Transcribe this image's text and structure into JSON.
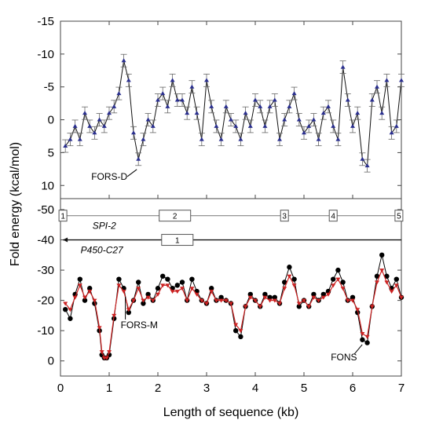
{
  "chart_data": [
    {
      "type": "line",
      "panel": "top",
      "xlabel": "Length of sequence (kb)",
      "ylabel": "Fold energy (kcal/mol)",
      "xlim": [
        0,
        7
      ],
      "ylim": [
        -15,
        12
      ],
      "y_axis_inverted": true,
      "x_ticks": [
        0,
        1,
        2,
        3,
        4,
        5,
        6,
        7
      ],
      "y_ticks": [
        -15,
        -10,
        -5,
        0,
        5,
        10
      ],
      "y_tick_labels": [
        "-15",
        "-10",
        "-5",
        "0",
        "5",
        "10"
      ],
      "x_tick_labels": [
        "0",
        "1",
        "2",
        "3",
        "4",
        "5",
        "6",
        "7"
      ],
      "error_bars": true,
      "marker": "triangle",
      "colors": {
        "line": "#111111",
        "marker": "#2a2f8f",
        "errorbar": "#666666"
      },
      "series": [
        {
          "x": [
            0.1,
            0.2,
            0.3,
            0.4,
            0.5,
            0.6,
            0.7,
            0.8,
            0.9,
            1.0,
            1.1,
            1.2,
            1.3,
            1.4,
            1.5,
            1.6,
            1.7,
            1.8,
            1.9,
            2.0,
            2.1,
            2.2,
            2.3,
            2.4,
            2.5,
            2.6,
            2.7,
            2.8,
            2.9,
            3.0,
            3.1,
            3.2,
            3.3,
            3.4,
            3.5,
            3.6,
            3.7,
            3.8,
            3.9,
            4.0,
            4.1,
            4.2,
            4.3,
            4.4,
            4.5,
            4.6,
            4.7,
            4.8,
            4.9,
            5.0,
            5.1,
            5.2,
            5.3,
            5.4,
            5.5,
            5.6,
            5.7,
            5.8,
            5.9,
            6.0,
            6.1,
            6.2,
            6.3,
            6.4,
            6.5,
            6.6,
            6.7,
            6.8,
            6.9,
            7.0
          ],
          "y": [
            4,
            3,
            1,
            3,
            -1,
            1,
            2,
            0,
            1,
            -1,
            -2,
            -4,
            -9,
            -6,
            2,
            6,
            3,
            0,
            1,
            -3,
            -4,
            -2,
            -6,
            -3,
            -3,
            -1,
            -5,
            -1,
            3,
            -6,
            -2,
            1,
            3,
            -2,
            0,
            1,
            3,
            -1,
            1,
            -3,
            -2,
            1,
            -2,
            -3,
            3,
            0,
            -2,
            -4,
            0,
            2,
            1,
            0,
            3,
            -1,
            -2,
            1,
            3,
            -8,
            -3,
            1,
            -1,
            6,
            7,
            -3,
            -5,
            -1,
            -6,
            2,
            1,
            -6
          ]
        }
      ],
      "annotations": [
        {
          "text": "FORS-D",
          "x": 1.6,
          "y": 7.2
        }
      ]
    },
    {
      "type": "line",
      "panel": "bottom",
      "xlabel": "Length of sequence (kb)",
      "ylabel": "Fold energy (kcal/mol)",
      "xlim": [
        0,
        7
      ],
      "ylim": [
        5,
        -50
      ],
      "y_axis_inverted": true,
      "x_ticks": [
        0,
        1,
        2,
        3,
        4,
        5,
        6,
        7
      ],
      "x_tick_labels": [
        "0",
        "1",
        "2",
        "3",
        "4",
        "5",
        "6",
        "7"
      ],
      "y_ticks": [
        0,
        -10,
        -20,
        -30,
        -40,
        -50
      ],
      "y_tick_labels": [
        "0",
        "-10",
        "-20",
        "-30",
        "-40",
        "-50"
      ],
      "colors": {
        "series_black": "#000000",
        "series_red": "#cc2222"
      },
      "series": [
        {
          "marker": "circle",
          "color": "#000000",
          "x": [
            0.1,
            0.2,
            0.3,
            0.4,
            0.5,
            0.6,
            0.7,
            0.8,
            0.85,
            0.9,
            0.95,
            1.0,
            1.1,
            1.2,
            1.3,
            1.4,
            1.5,
            1.6,
            1.7,
            1.8,
            1.9,
            2.0,
            2.1,
            2.2,
            2.3,
            2.4,
            2.5,
            2.6,
            2.7,
            2.8,
            2.9,
            3.0,
            3.1,
            3.2,
            3.3,
            3.4,
            3.5,
            3.6,
            3.7,
            3.8,
            3.9,
            4.0,
            4.1,
            4.2,
            4.3,
            4.4,
            4.5,
            4.6,
            4.7,
            4.8,
            4.9,
            5.0,
            5.1,
            5.2,
            5.3,
            5.4,
            5.5,
            5.6,
            5.7,
            5.8,
            5.9,
            6.0,
            6.1,
            6.2,
            6.3,
            6.4,
            6.5,
            6.6,
            6.7,
            6.8,
            6.9,
            7.0
          ],
          "y": [
            -17,
            -14,
            -22,
            -27,
            -20,
            -24,
            -19,
            -10,
            -2,
            -1,
            -1,
            -2,
            -14,
            -27,
            -24,
            -16,
            -20,
            -26,
            -19,
            -22,
            -20,
            -24,
            -28,
            -27,
            -24,
            -25,
            -26,
            -20,
            -27,
            -23,
            -20,
            -19,
            -24,
            -20,
            -21,
            -20,
            -19,
            -10,
            -8,
            -18,
            -22,
            -20,
            -18,
            -22,
            -21,
            -21,
            -19,
            -26,
            -31,
            -27,
            -18,
            -20,
            -18,
            -22,
            -20,
            -22,
            -23,
            -27,
            -30,
            -26,
            -20,
            -21,
            -16,
            -7,
            -6,
            -18,
            -28,
            -35,
            -28,
            -24,
            -27,
            -21
          ]
        },
        {
          "marker": "triangle-down",
          "color": "#cc2222",
          "x": [
            0.1,
            0.2,
            0.3,
            0.4,
            0.5,
            0.6,
            0.7,
            0.8,
            0.85,
            0.9,
            0.95,
            1.0,
            1.1,
            1.2,
            1.3,
            1.4,
            1.5,
            1.6,
            1.7,
            1.8,
            1.9,
            2.0,
            2.1,
            2.2,
            2.3,
            2.4,
            2.5,
            2.6,
            2.7,
            2.8,
            2.9,
            3.0,
            3.1,
            3.2,
            3.3,
            3.4,
            3.5,
            3.6,
            3.7,
            3.8,
            3.9,
            4.0,
            4.1,
            4.2,
            4.3,
            4.4,
            4.5,
            4.6,
            4.7,
            4.8,
            4.9,
            5.0,
            5.1,
            5.2,
            5.3,
            5.4,
            5.5,
            5.6,
            5.7,
            5.8,
            5.9,
            6.0,
            6.1,
            6.2,
            6.3,
            6.4,
            6.5,
            6.6,
            6.7,
            6.8,
            6.9,
            7.0
          ],
          "y": [
            -19,
            -17,
            -21,
            -25,
            -21,
            -23,
            -20,
            -11,
            -3,
            -1,
            -1,
            -3,
            -15,
            -25,
            -23,
            -17,
            -20,
            -24,
            -20,
            -21,
            -20,
            -22,
            -25,
            -25,
            -23,
            -23,
            -24,
            -20,
            -24,
            -22,
            -20,
            -19,
            -23,
            -20,
            -20,
            -20,
            -19,
            -12,
            -10,
            -18,
            -21,
            -20,
            -18,
            -21,
            -20,
            -20,
            -19,
            -24,
            -28,
            -25,
            -19,
            -20,
            -18,
            -21,
            -20,
            -21,
            -22,
            -25,
            -27,
            -24,
            -20,
            -20,
            -17,
            -9,
            -8,
            -18,
            -26,
            -30,
            -26,
            -23,
            -25,
            -21
          ]
        }
      ],
      "annotations": [
        {
          "text": "FORS-M",
          "x": 1.3,
          "y": -15
        },
        {
          "text": "FONS",
          "x": 6.1,
          "y": -8
        }
      ],
      "tracks": [
        {
          "label": "SPI-2",
          "y": -48,
          "x_start": 0.05,
          "x_end": 7.0,
          "boxes": [
            {
              "label": "1",
              "x": 0.05
            },
            {
              "label": "2",
              "x": 2.35
            },
            {
              "label": "3",
              "x": 4.6
            },
            {
              "label": "4",
              "x": 5.6
            },
            {
              "label": "5",
              "x": 6.95
            }
          ]
        },
        {
          "label": "P450-C27",
          "y": -40,
          "x_start": 0.05,
          "x_end": 7.0,
          "boxes": [
            {
              "label": "1",
              "x": 2.4
            }
          ]
        }
      ]
    }
  ]
}
